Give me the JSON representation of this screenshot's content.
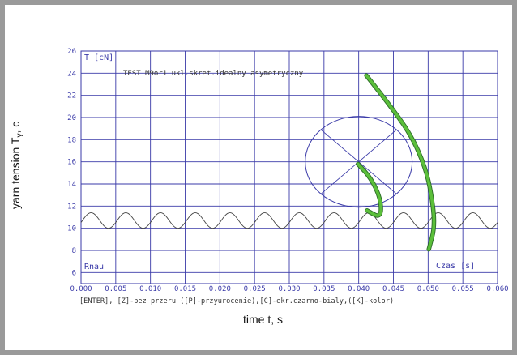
{
  "colors": {
    "border": "#9a9a9a",
    "grid": "#3a3aa8",
    "axis_text": "#3a3aa8",
    "signal": "#444444",
    "circle": "#3a3aa8",
    "balloon_fill": "#5bbf3a",
    "balloon_edge": "#2f6f2a"
  },
  "chart_data": {
    "type": "line",
    "ylabel_prefix": "yarn tension T",
    "ylabel_sub": "y",
    "ylabel_suffix": ", cN",
    "xlabel": "time t, s",
    "inner_y_unit": "T [cN]",
    "inner_x_unit": "Czas [s]",
    "corner_label": "Rnau",
    "test_title": "TEST M9or1  ukl.skret.idealny asymetryczny",
    "footer_hint": "[ENTER], [Z]-bez przeru ([P]-przyurocenie),[C]-ekr.czarno-bialy,([K]-kolor)",
    "xlim": [
      0.0,
      0.06
    ],
    "ylim": [
      5,
      26
    ],
    "x_ticks": [
      "0.000",
      "0.005",
      "0.010",
      "0.015",
      "0.020",
      "0.025",
      "0.030",
      "0.035",
      "0.040",
      "0.045",
      "0.050",
      "0.055",
      "0.060"
    ],
    "y_ticks": [
      "6",
      "8",
      "10",
      "12",
      "14",
      "16",
      "18",
      "20",
      "22",
      "24",
      "26"
    ],
    "grid": true,
    "series": [
      {
        "kind": "sine",
        "mean": 10.7,
        "amplitude": 0.7,
        "period": 0.005,
        "x_start": 0.0,
        "x_end": 0.06
      }
    ],
    "circle": {
      "center_x": 0.04,
      "center_y": 16.0,
      "radius_y": 4.1,
      "radius_x_data": 0.0077
    },
    "balloons": [
      {
        "name": "",
        "path": [
          [
            0.0411,
            23.8
          ],
          [
            0.044,
            21.5
          ],
          [
            0.0475,
            18.5
          ],
          [
            0.0496,
            15.5
          ],
          [
            0.0505,
            13.0
          ],
          [
            0.051,
            10.2
          ],
          [
            0.0501,
            8.1
          ]
        ]
      },
      {
        "name": "",
        "path": [
          [
            0.0399,
            15.8
          ],
          [
            0.0418,
            14.5
          ],
          [
            0.0432,
            12.6
          ],
          [
            0.0432,
            10.9
          ],
          [
            0.0412,
            11.6
          ]
        ]
      }
    ]
  }
}
